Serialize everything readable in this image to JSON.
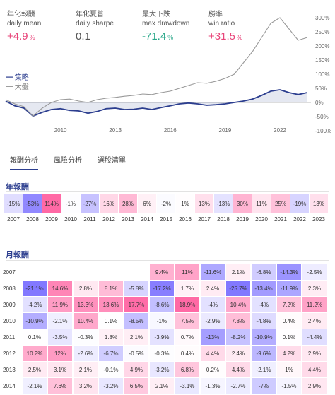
{
  "stats": [
    {
      "label_zh": "年化報酬",
      "label_en": "daily mean",
      "value": "+4.9",
      "unit": "%",
      "tone": "pos"
    },
    {
      "label_zh": "年化夏普",
      "label_en": "daily sharpe",
      "value": "0.1",
      "unit": "",
      "tone": "neu"
    },
    {
      "label_zh": "最大下跌",
      "label_en": "max drawdown",
      "value": "-71.4",
      "unit": "%",
      "tone": "neg"
    },
    {
      "label_zh": "勝率",
      "label_en": "win ratio",
      "value": "+31.5",
      "unit": "%",
      "tone": "pos"
    }
  ],
  "legend": {
    "strategy": "━ 策略",
    "benchmark": "━ 大盤"
  },
  "chart_data": {
    "type": "line",
    "x_ticks": [
      "2010",
      "2013",
      "2016",
      "2019",
      "2022"
    ],
    "y_ticks": [
      "300%",
      "250%",
      "200%",
      "150%",
      "100%",
      "50%",
      "0%",
      "-50%",
      "-100%"
    ],
    "ylim": [
      -100,
      300
    ],
    "series": [
      {
        "name": "策略",
        "color": "#2c3e8f",
        "x": [
          2007.0,
          2007.5,
          2008.0,
          2008.5,
          2009.0,
          2009.5,
          2010.0,
          2010.5,
          2011.0,
          2011.5,
          2012.0,
          2012.5,
          2013.0,
          2013.5,
          2014.0,
          2014.5,
          2015.0,
          2015.5,
          2016.0,
          2016.5,
          2017.0,
          2017.5,
          2018.0,
          2018.5,
          2019.0,
          2019.5,
          2020.0,
          2020.5,
          2021.0,
          2021.5,
          2022.0,
          2022.5,
          2023.0,
          2023.5
        ],
        "y": [
          5,
          -12,
          -20,
          -48,
          -35,
          -25,
          -22,
          -28,
          -30,
          -38,
          -32,
          -22,
          -20,
          -25,
          -24,
          -20,
          -25,
          -18,
          -12,
          -5,
          -2,
          -5,
          -10,
          -8,
          -5,
          0,
          5,
          12,
          25,
          40,
          45,
          35,
          28,
          35
        ]
      },
      {
        "name": "大盤",
        "color": "#999999",
        "x": [
          2007.0,
          2007.5,
          2008.0,
          2008.5,
          2009.0,
          2009.5,
          2010.0,
          2010.5,
          2011.0,
          2011.5,
          2012.0,
          2012.5,
          2013.0,
          2013.5,
          2014.0,
          2014.5,
          2015.0,
          2015.5,
          2016.0,
          2016.5,
          2017.0,
          2017.5,
          2018.0,
          2018.5,
          2019.0,
          2019.5,
          2020.0,
          2020.5,
          2021.0,
          2021.5,
          2022.0,
          2022.5,
          2023.0,
          2023.5
        ],
        "y": [
          10,
          -5,
          -15,
          -48,
          -20,
          0,
          10,
          12,
          5,
          0,
          10,
          15,
          18,
          22,
          25,
          30,
          28,
          35,
          40,
          50,
          60,
          70,
          68,
          75,
          85,
          100,
          140,
          180,
          230,
          280,
          300,
          260,
          220,
          230
        ]
      }
    ]
  },
  "tabs": [
    {
      "label": "報酬分析",
      "active": true
    },
    {
      "label": "風險分析",
      "active": false
    },
    {
      "label": "選股清單",
      "active": false
    }
  ],
  "annual": {
    "title": "年報酬",
    "years": [
      "2007",
      "2008",
      "2009",
      "2010",
      "2011",
      "2012",
      "2013",
      "2014",
      "2015",
      "2016",
      "2017",
      "2018",
      "2019",
      "2020",
      "2021",
      "2022",
      "2023"
    ],
    "values": [
      "-15%",
      "-53%",
      "114%",
      "-1%",
      "-27%",
      "16%",
      "28%",
      "6%",
      "-2%",
      "1%",
      "13%",
      "-13%",
      "30%",
      "11%",
      "25%",
      "-19%",
      "13%"
    ],
    "nums": [
      -15,
      -53,
      114,
      -1,
      -27,
      16,
      28,
      6,
      -2,
      1,
      13,
      -13,
      30,
      11,
      25,
      -19,
      13
    ]
  },
  "monthly": {
    "title": "月報酬",
    "years": [
      "2007",
      "2008",
      "2009",
      "2010",
      "2011",
      "2012",
      "2013",
      "2014"
    ],
    "rows": [
      [
        "",
        "",
        "",
        "",
        "",
        "9.4%",
        "11%",
        "-11.6%",
        "2.1%",
        "-6.8%",
        "-14.3%",
        "-2.5%"
      ],
      [
        "-21.1%",
        "14.6%",
        "2.8%",
        "8.1%",
        "-5.8%",
        "-17.2%",
        "1.7%",
        "2.4%",
        "-25.7%",
        "-13.4%",
        "-11.9%",
        "2.3%"
      ],
      [
        "-4.2%",
        "11.9%",
        "13.3%",
        "13.6%",
        "17.7%",
        "-8.6%",
        "18.9%",
        "-4%",
        "10.4%",
        "-4%",
        "7.2%",
        "11.2%"
      ],
      [
        "-10.9%",
        "-2.1%",
        "10.4%",
        "0.1%",
        "-8.5%",
        "-1%",
        "7.5%",
        "-2.9%",
        "7.8%",
        "-4.8%",
        "0.4%",
        "2.4%"
      ],
      [
        "0.1%",
        "-3.5%",
        "-0.3%",
        "1.8%",
        "2.1%",
        "-3.9%",
        "0.7%",
        "-13%",
        "-8.2%",
        "-10.9%",
        "0.1%",
        "-4.4%"
      ],
      [
        "10.2%",
        "12%",
        "-2.6%",
        "-6.7%",
        "-0.5%",
        "-0.3%",
        "0.4%",
        "4.4%",
        "2.4%",
        "-9.6%",
        "4.2%",
        "2.9%"
      ],
      [
        "2.5%",
        "3.1%",
        "2.1%",
        "-0.1%",
        "4.9%",
        "-3.2%",
        "6.8%",
        "0.2%",
        "4.4%",
        "-2.1%",
        "1%",
        "4.4%"
      ],
      [
        "-2.1%",
        "7.6%",
        "3.2%",
        "-3.2%",
        "6.5%",
        "2.1%",
        "-3.1%",
        "-1.3%",
        "-2.7%",
        "-7%",
        "-1.5%",
        "2.9%"
      ]
    ],
    "nums": [
      [
        null,
        null,
        null,
        null,
        null,
        9.4,
        11,
        -11.6,
        2.1,
        -6.8,
        -14.3,
        -2.5
      ],
      [
        -21.1,
        14.6,
        2.8,
        8.1,
        -5.8,
        -17.2,
        1.7,
        2.4,
        -25.7,
        -13.4,
        -11.9,
        2.3
      ],
      [
        -4.2,
        11.9,
        13.3,
        13.6,
        17.7,
        -8.6,
        18.9,
        -4,
        10.4,
        -4,
        7.2,
        11.2
      ],
      [
        -10.9,
        -2.1,
        10.4,
        0.1,
        -8.5,
        -1,
        7.5,
        -2.9,
        7.8,
        -4.8,
        0.4,
        2.4
      ],
      [
        0.1,
        -3.5,
        -0.3,
        1.8,
        2.1,
        -3.9,
        0.7,
        -13,
        -8.2,
        -10.9,
        0.1,
        -4.4
      ],
      [
        10.2,
        12,
        -2.6,
        -6.7,
        -0.5,
        -0.3,
        0.4,
        4.4,
        2.4,
        -9.6,
        4.2,
        2.9
      ],
      [
        2.5,
        3.1,
        2.1,
        -0.1,
        4.9,
        -3.2,
        6.8,
        0.2,
        4.4,
        -2.1,
        1,
        4.4
      ],
      [
        -2.1,
        7.6,
        3.2,
        -3.2,
        6.5,
        2.1,
        -3.1,
        -1.3,
        -2.7,
        -7,
        -1.5,
        2.9
      ]
    ]
  }
}
